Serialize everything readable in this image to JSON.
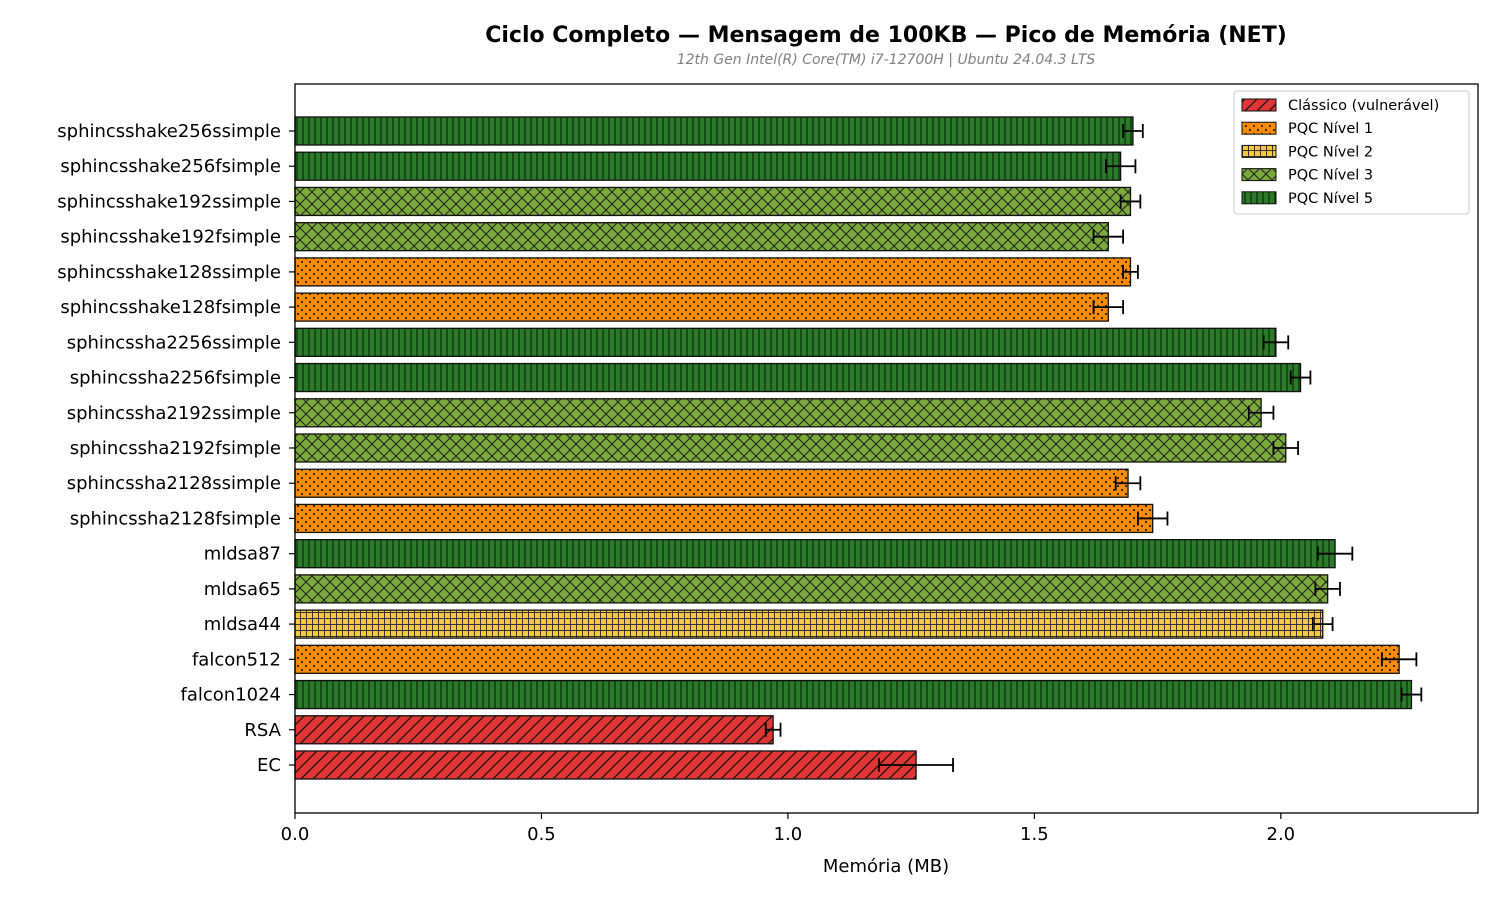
{
  "chart_data": {
    "type": "bar",
    "orientation": "horizontal",
    "title": "Ciclo Completo — Mensagem de 100KB — Pico de Memória (NET)",
    "subtitle": "12th Gen Intel(R) Core(TM) i7-12700H | Ubuntu 24.04.3 LTS",
    "xlabel": "Memória (MB)",
    "ylabel": "",
    "xlim": [
      0,
      2.4
    ],
    "xticks": [
      "0.0",
      "0.5",
      "1.0",
      "1.5",
      "2.0"
    ],
    "grid": false,
    "legend_position": "top-right",
    "legend": [
      {
        "key": "classico",
        "label": "Clássico (vulnerável)",
        "color": "#e03535",
        "pattern": "diagonal"
      },
      {
        "key": "n1",
        "label": "PQC Nível 1",
        "color": "#ff8c00",
        "pattern": "dots"
      },
      {
        "key": "n2",
        "label": "PQC Nível 2",
        "color": "#f5c842",
        "pattern": "grid"
      },
      {
        "key": "n3",
        "label": "PQC Nível 3",
        "color": "#7aab3a",
        "pattern": "crosshatch"
      },
      {
        "key": "n5",
        "label": "PQC Nível 5",
        "color": "#2a7a2a",
        "pattern": "vertical"
      }
    ],
    "bars": [
      {
        "label": "sphincsshake256ssimple",
        "value": 1.7,
        "error": 0.02,
        "group": "n5"
      },
      {
        "label": "sphincsshake256fsimple",
        "value": 1.675,
        "error": 0.03,
        "group": "n5"
      },
      {
        "label": "sphincsshake192ssimple",
        "value": 1.695,
        "error": 0.02,
        "group": "n3"
      },
      {
        "label": "sphincsshake192fsimple",
        "value": 1.65,
        "error": 0.03,
        "group": "n3"
      },
      {
        "label": "sphincsshake128ssimple",
        "value": 1.695,
        "error": 0.015,
        "group": "n1"
      },
      {
        "label": "sphincsshake128fsimple",
        "value": 1.65,
        "error": 0.03,
        "group": "n1"
      },
      {
        "label": "sphincssha2256ssimple",
        "value": 1.99,
        "error": 0.025,
        "group": "n5"
      },
      {
        "label": "sphincssha2256fsimple",
        "value": 2.04,
        "error": 0.02,
        "group": "n5"
      },
      {
        "label": "sphincssha2192ssimple",
        "value": 1.96,
        "error": 0.025,
        "group": "n3"
      },
      {
        "label": "sphincssha2192fsimple",
        "value": 2.01,
        "error": 0.025,
        "group": "n3"
      },
      {
        "label": "sphincssha2128ssimple",
        "value": 1.69,
        "error": 0.025,
        "group": "n1"
      },
      {
        "label": "sphincssha2128fsimple",
        "value": 1.74,
        "error": 0.03,
        "group": "n1"
      },
      {
        "label": "mldsa87",
        "value": 2.11,
        "error": 0.035,
        "group": "n5"
      },
      {
        "label": "mldsa65",
        "value": 2.095,
        "error": 0.025,
        "group": "n3"
      },
      {
        "label": "mldsa44",
        "value": 2.085,
        "error": 0.02,
        "group": "n2"
      },
      {
        "label": "falcon512",
        "value": 2.24,
        "error": 0.035,
        "group": "n1"
      },
      {
        "label": "falcon1024",
        "value": 2.265,
        "error": 0.02,
        "group": "n5"
      },
      {
        "label": "RSA",
        "value": 0.97,
        "error": 0.015,
        "group": "classico"
      },
      {
        "label": "EC",
        "value": 1.26,
        "error": 0.075,
        "group": "classico"
      }
    ]
  }
}
